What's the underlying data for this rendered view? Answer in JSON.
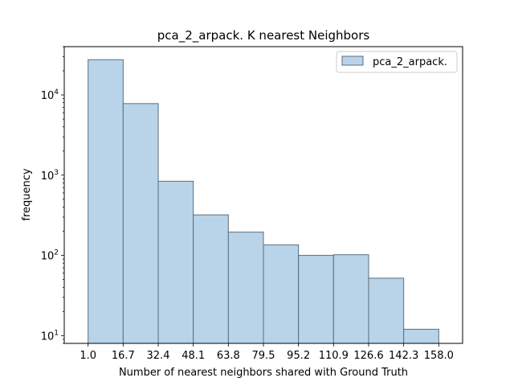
{
  "chart_data": {
    "type": "bar",
    "title": "pca_2_arpack. K nearest Neighbors",
    "xlabel": "Number of nearest neighbors shared with Ground Truth",
    "ylabel": "frequency",
    "yscale": "log",
    "ylim": [
      8,
      40000
    ],
    "xlim": [
      -0.68,
      10.68
    ],
    "bin_edges": [
      "1.0",
      "16.7",
      "32.4",
      "48.1",
      "63.8",
      "79.5",
      "95.2",
      "110.9",
      "126.6",
      "142.3",
      "158.0"
    ],
    "values": [
      27500,
      7800,
      840,
      320,
      195,
      135,
      100,
      102,
      52,
      12
    ],
    "y_ticks": [
      {
        "value": 10,
        "base": "10",
        "exp": "1"
      },
      {
        "value": 100,
        "base": "10",
        "exp": "2"
      },
      {
        "value": 1000,
        "base": "10",
        "exp": "3"
      },
      {
        "value": 10000,
        "base": "10",
        "exp": "4"
      }
    ],
    "series": [
      {
        "name": "pca_2_arpack.",
        "color": "#b9d3e8",
        "edge": "#5a6f80"
      }
    ],
    "legend_position": "top-right",
    "grid": false
  }
}
